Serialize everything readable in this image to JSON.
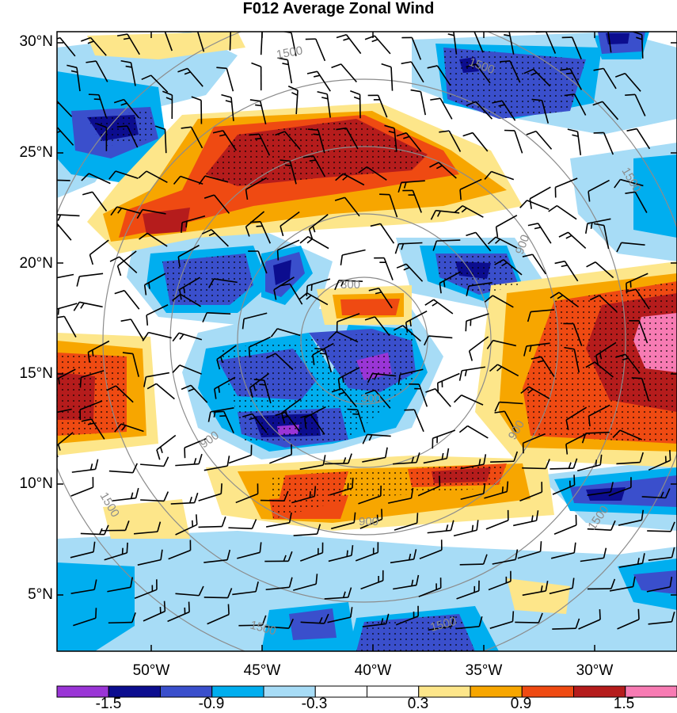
{
  "title": "F012 Average Zonal Wind",
  "lat_labels": [
    "30°N",
    "25°N",
    "20°N",
    "15°N",
    "10°N",
    "5°N"
  ],
  "lon_labels": [
    "50°W",
    "45°W",
    "40°W",
    "35°W",
    "30°W"
  ],
  "ring_labels": [
    "300",
    "900",
    "1500"
  ],
  "colorbar": {
    "labels": [
      "-1.5",
      "-0.9",
      "-0.3",
      "0.3",
      "0.9",
      "1.5"
    ],
    "colors": [
      "#9a35d6",
      "#0c0d8f",
      "#3a4fcc",
      "#00aeef",
      "#a7dcf6",
      "#ffffff",
      "#ffffff",
      "#fde68a",
      "#f7a600",
      "#ef4a12",
      "#b51c1c",
      "#f77bb3"
    ]
  },
  "colors": {
    "ring": "#8c8c8c",
    "barb": "#000000",
    "frame": "#000000"
  }
}
